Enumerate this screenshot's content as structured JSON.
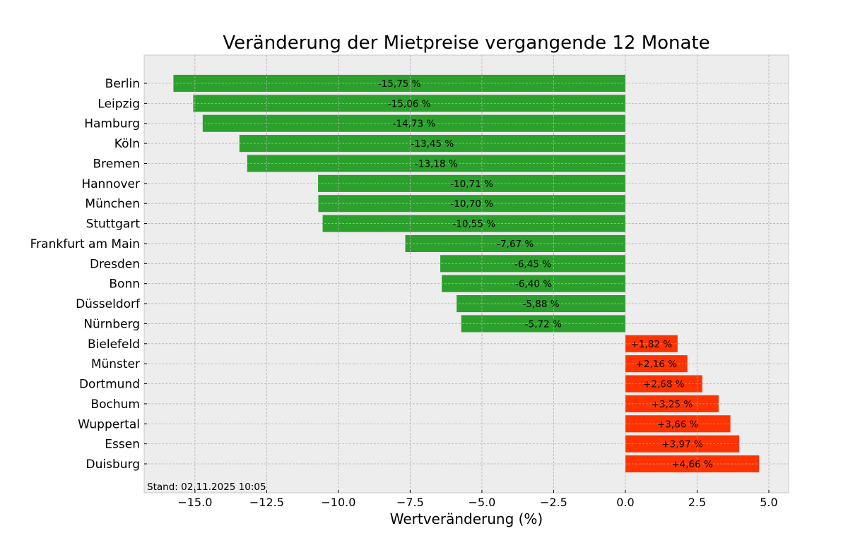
{
  "chart_data": {
    "type": "bar",
    "orientation": "horizontal",
    "title": "Veränderung der Mietpreise vergangende 12 Monate",
    "xlabel": "Wertveränderung (%)",
    "ylabel": "",
    "xlim": [
      -16.77,
      5.69
    ],
    "grid": true,
    "xticks": [
      -15.0,
      -12.5,
      -10.0,
      -7.5,
      -5.0,
      -2.5,
      0.0,
      2.5,
      5.0
    ],
    "xtick_labels": [
      "−15.0",
      "−12.5",
      "−10.0",
      "−7.5",
      "−5.0",
      "−2.5",
      "0.0",
      "2.5",
      "5.0"
    ],
    "categories": [
      "Berlin",
      "Leipzig",
      "Hamburg",
      "Köln",
      "Bremen",
      "Hannover",
      "München",
      "Stuttgart",
      "Frankfurt am Main",
      "Dresden",
      "Bonn",
      "Düsseldorf",
      "Nürnberg",
      "Bielefeld",
      "Münster",
      "Dortmund",
      "Bochum",
      "Wuppertal",
      "Essen",
      "Duisburg"
    ],
    "values": [
      -15.75,
      -15.06,
      -14.73,
      -13.45,
      -13.18,
      -10.71,
      -10.7,
      -10.55,
      -7.67,
      -6.45,
      -6.4,
      -5.88,
      -5.72,
      1.82,
      2.16,
      2.68,
      3.25,
      3.66,
      3.97,
      4.66
    ],
    "data_labels": [
      "-15,75 %",
      "-15,06 %",
      "-14,73 %",
      "-13,45 %",
      "-13,18 %",
      "-10,71 %",
      "-10,70 %",
      "-10,55 %",
      "-7,67 %",
      "-6,45 %",
      "-6,40 %",
      "-5,88 %",
      "-5,72 %",
      "+1,82 %",
      "+2,16 %",
      "+2,68 %",
      "+3,25 %",
      "+3,66 %",
      "+3,97 %",
      "+4,66 %"
    ],
    "annotation": "Stand: 02.11.2025 10:05",
    "colors": {
      "negative": "#2ca02c",
      "positive": "#ff3300",
      "background": "#ededed",
      "grid": "#b0b0b0"
    }
  }
}
